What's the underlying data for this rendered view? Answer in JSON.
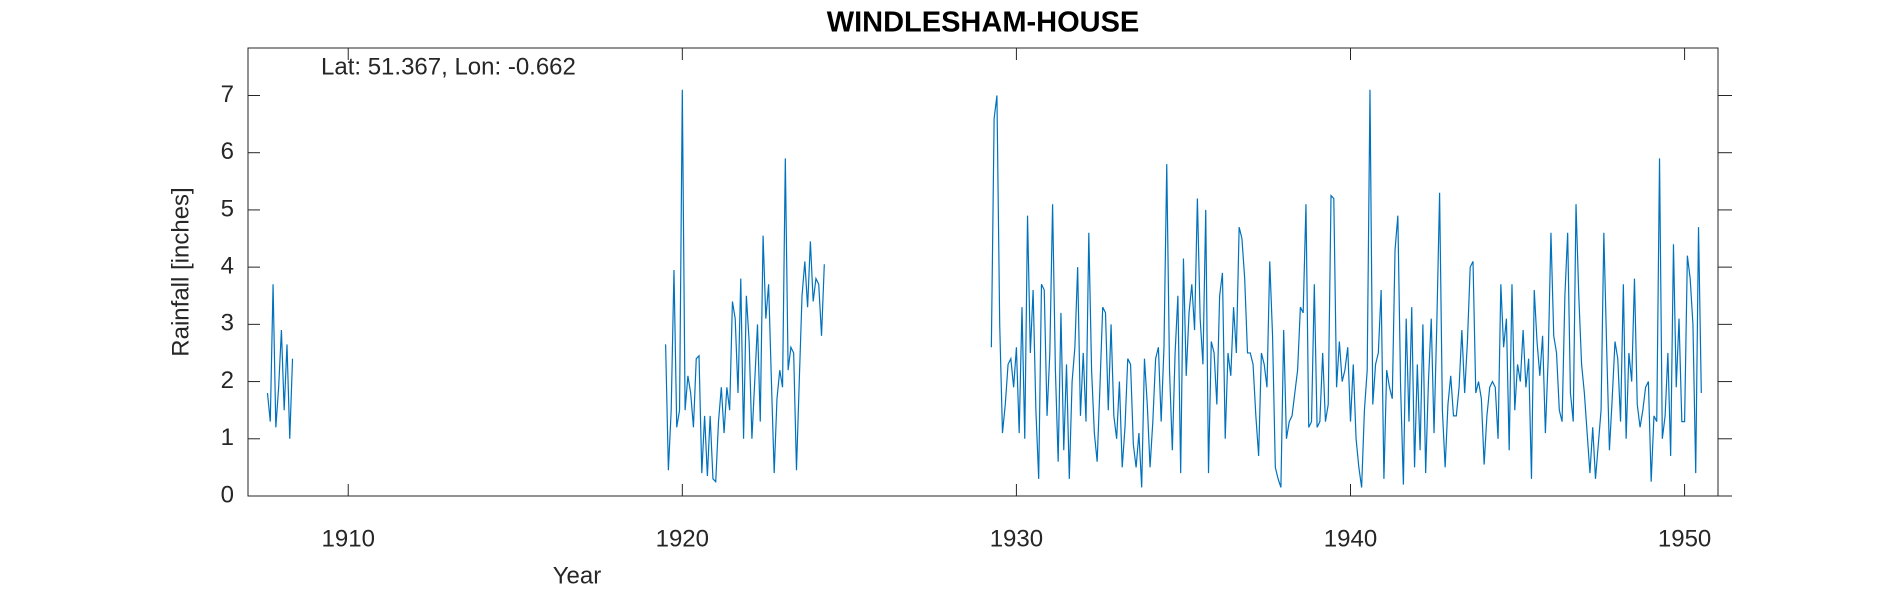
{
  "chart_data": {
    "type": "line",
    "title": "WINDLESHAM-HOUSE",
    "annotation": "Lat: 51.367, Lon: -0.662",
    "x_label": "Year",
    "y_label": "Rainfall [inches]",
    "xlim": [
      1907,
      1951
    ],
    "ylim": [
      0,
      7.83
    ],
    "xticks": [
      1910,
      1920,
      1930,
      1940,
      1950
    ],
    "yticks": [
      0,
      1,
      2,
      3,
      4,
      5,
      6,
      7
    ],
    "grid": false,
    "x": [
      1907.583,
      1907.667,
      1907.75,
      1907.833,
      1907.917,
      1908,
      1908.083,
      1908.167,
      1908.25,
      1908.333,
      1908.417,
      1919.5,
      1919.583,
      1919.667,
      1919.75,
      1919.833,
      1919.917,
      1920,
      1920.083,
      1920.167,
      1920.25,
      1920.333,
      1920.417,
      1920.5,
      1920.583,
      1920.667,
      1920.75,
      1920.833,
      1920.917,
      1921,
      1921.083,
      1921.167,
      1921.25,
      1921.333,
      1921.417,
      1921.5,
      1921.583,
      1921.667,
      1921.75,
      1921.833,
      1921.917,
      1922,
      1922.083,
      1922.167,
      1922.25,
      1922.333,
      1922.417,
      1922.5,
      1922.583,
      1922.667,
      1922.75,
      1922.833,
      1922.917,
      1923,
      1923.083,
      1923.167,
      1923.25,
      1923.333,
      1923.417,
      1923.5,
      1923.583,
      1923.667,
      1923.75,
      1923.833,
      1923.917,
      1924,
      1924.083,
      1924.167,
      1924.25,
      1924.333,
      1929.25,
      1929.333,
      1929.417,
      1929.5,
      1929.583,
      1929.667,
      1929.75,
      1929.833,
      1929.917,
      1930,
      1930.083,
      1930.167,
      1930.25,
      1930.333,
      1930.417,
      1930.5,
      1930.583,
      1930.667,
      1930.75,
      1930.833,
      1930.917,
      1931,
      1931.083,
      1931.167,
      1931.25,
      1931.333,
      1931.417,
      1931.5,
      1931.583,
      1931.667,
      1931.75,
      1931.833,
      1931.917,
      1932,
      1932.083,
      1932.167,
      1932.25,
      1932.333,
      1932.417,
      1932.5,
      1932.583,
      1932.667,
      1932.75,
      1932.833,
      1932.917,
      1933,
      1933.083,
      1933.167,
      1933.25,
      1933.333,
      1933.417,
      1933.5,
      1933.583,
      1933.667,
      1933.75,
      1933.833,
      1933.917,
      1934,
      1934.083,
      1934.167,
      1934.25,
      1934.333,
      1934.417,
      1934.5,
      1934.583,
      1934.667,
      1934.75,
      1934.833,
      1934.917,
      1935,
      1935.083,
      1935.167,
      1935.25,
      1935.333,
      1935.417,
      1935.5,
      1935.583,
      1935.667,
      1935.75,
      1935.833,
      1935.917,
      1936,
      1936.083,
      1936.167,
      1936.25,
      1936.333,
      1936.417,
      1936.5,
      1936.583,
      1936.667,
      1936.75,
      1936.833,
      1936.917,
      1937,
      1937.083,
      1937.167,
      1937.25,
      1937.333,
      1937.417,
      1937.5,
      1937.583,
      1937.667,
      1937.75,
      1937.833,
      1937.917,
      1938,
      1938.083,
      1938.167,
      1938.25,
      1938.333,
      1938.417,
      1938.5,
      1938.583,
      1938.667,
      1938.75,
      1938.833,
      1938.917,
      1939,
      1939.083,
      1939.167,
      1939.25,
      1939.333,
      1939.417,
      1939.5,
      1939.583,
      1939.667,
      1939.75,
      1939.833,
      1939.917,
      1940,
      1940.083,
      1940.167,
      1940.25,
      1940.333,
      1940.417,
      1940.5,
      1940.583,
      1940.667,
      1940.75,
      1940.833,
      1940.917,
      1941,
      1941.083,
      1941.167,
      1941.25,
      1941.333,
      1941.417,
      1941.5,
      1941.583,
      1941.667,
      1941.75,
      1941.833,
      1941.917,
      1942,
      1942.083,
      1942.167,
      1942.25,
      1942.333,
      1942.417,
      1942.5,
      1942.583,
      1942.667,
      1942.75,
      1942.833,
      1942.917,
      1943,
      1943.083,
      1943.167,
      1943.25,
      1943.333,
      1943.417,
      1943.5,
      1943.583,
      1943.667,
      1943.75,
      1943.833,
      1943.917,
      1944,
      1944.083,
      1944.167,
      1944.25,
      1944.333,
      1944.417,
      1944.5,
      1944.583,
      1944.667,
      1944.75,
      1944.833,
      1944.917,
      1945,
      1945.083,
      1945.167,
      1945.25,
      1945.333,
      1945.417,
      1945.5,
      1945.583,
      1945.667,
      1945.75,
      1945.833,
      1945.917,
      1946,
      1946.083,
      1946.167,
      1946.25,
      1946.333,
      1946.417,
      1946.5,
      1946.583,
      1946.667,
      1946.75,
      1946.833,
      1946.917,
      1947,
      1947.083,
      1947.167,
      1947.25,
      1947.333,
      1947.417,
      1947.5,
      1947.583,
      1947.667,
      1947.75,
      1947.833,
      1947.917,
      1948,
      1948.083,
      1948.167,
      1948.25,
      1948.333,
      1948.417,
      1948.5,
      1948.583,
      1948.667,
      1948.75,
      1948.833,
      1948.917,
      1949,
      1949.083,
      1949.167,
      1949.25,
      1949.333,
      1949.417,
      1949.5,
      1949.583,
      1949.667,
      1949.75,
      1949.833,
      1949.917,
      1950,
      1950.083,
      1950.167,
      1950.25,
      1950.333,
      1950.417,
      1950.5
    ],
    "series": [
      {
        "color": "#0072bd",
        "values": [
          1.8,
          1.3,
          3.7,
          1.2,
          1.9,
          2.9,
          1.5,
          2.65,
          1.0,
          2.4,
          null,
          2.65,
          0.45,
          1.5,
          3.95,
          1.2,
          1.5,
          7.1,
          1.5,
          2.1,
          1.8,
          1.2,
          2.4,
          2.45,
          0.4,
          1.4,
          0.35,
          1.4,
          0.3,
          0.25,
          1.3,
          1.9,
          1.1,
          1.9,
          1.5,
          3.4,
          3.1,
          1.8,
          3.8,
          1.0,
          3.5,
          2.7,
          1.0,
          2.0,
          3.0,
          1.3,
          4.55,
          3.1,
          3.7,
          2.0,
          0.4,
          1.7,
          2.2,
          1.9,
          5.9,
          2.2,
          2.6,
          2.5,
          0.45,
          2.0,
          3.5,
          4.1,
          3.3,
          4.45,
          3.4,
          3.8,
          3.7,
          2.8,
          4.05,
          null,
          2.6,
          6.6,
          7.0,
          3.0,
          1.1,
          1.6,
          2.3,
          2.4,
          1.9,
          2.6,
          1.1,
          3.3,
          1.0,
          4.9,
          2.5,
          3.6,
          1.5,
          0.3,
          3.7,
          3.6,
          1.4,
          2.5,
          5.1,
          2.2,
          0.6,
          3.2,
          0.8,
          2.3,
          0.3,
          2.0,
          2.6,
          4.0,
          1.4,
          2.5,
          1.3,
          4.6,
          2.2,
          1.1,
          0.6,
          1.9,
          3.3,
          3.2,
          1.5,
          3.0,
          1.4,
          1.0,
          2.0,
          0.5,
          1.2,
          2.4,
          2.3,
          0.9,
          0.5,
          1.1,
          0.15,
          2.4,
          1.6,
          0.5,
          1.3,
          2.4,
          2.6,
          1.3,
          2.6,
          5.8,
          2.2,
          0.8,
          2.5,
          3.5,
          0.4,
          4.15,
          2.1,
          3.2,
          3.7,
          2.9,
          5.2,
          3.1,
          2.3,
          5.0,
          0.4,
          2.7,
          2.5,
          1.6,
          3.5,
          3.9,
          1.0,
          2.5,
          2.1,
          3.3,
          2.5,
          4.7,
          4.5,
          3.8,
          2.5,
          2.5,
          2.3,
          1.4,
          0.7,
          2.5,
          2.3,
          1.9,
          4.1,
          2.8,
          0.5,
          0.3,
          0.15,
          2.9,
          1.0,
          1.3,
          1.4,
          1.8,
          2.2,
          3.3,
          3.2,
          5.1,
          1.2,
          1.3,
          3.7,
          1.2,
          1.3,
          2.5,
          1.3,
          1.6,
          5.25,
          5.2,
          1.9,
          2.7,
          2.0,
          2.2,
          2.6,
          1.3,
          2.3,
          1.0,
          0.5,
          0.15,
          1.5,
          2.2,
          7.1,
          1.6,
          2.3,
          2.5,
          3.6,
          0.3,
          2.2,
          1.9,
          1.7,
          4.3,
          4.9,
          1.9,
          0.2,
          3.1,
          1.3,
          3.3,
          0.5,
          2.3,
          0.8,
          3.0,
          0.4,
          2.0,
          3.1,
          1.1,
          3.0,
          5.3,
          1.5,
          0.5,
          1.6,
          2.1,
          1.4,
          1.4,
          1.9,
          2.9,
          1.8,
          2.7,
          4.0,
          4.1,
          1.8,
          2.0,
          1.7,
          0.55,
          1.4,
          1.9,
          2.0,
          1.9,
          1.0,
          3.7,
          2.6,
          3.1,
          0.8,
          3.7,
          1.5,
          2.3,
          2.0,
          2.9,
          1.9,
          2.4,
          0.3,
          3.6,
          2.7,
          2.1,
          2.8,
          1.1,
          2.4,
          4.6,
          2.8,
          2.5,
          1.5,
          1.3,
          3.5,
          4.6,
          1.8,
          1.3,
          5.1,
          3.5,
          2.3,
          1.8,
          1.1,
          0.4,
          1.2,
          0.3,
          0.9,
          1.5,
          4.6,
          2.6,
          0.8,
          1.7,
          2.7,
          2.4,
          1.3,
          3.7,
          1.0,
          2.5,
          2.0,
          3.8,
          1.6,
          1.2,
          1.5,
          1.9,
          2.0,
          0.25,
          1.4,
          1.3,
          5.9,
          1.0,
          1.4,
          2.5,
          0.7,
          4.4,
          1.9,
          3.1,
          1.3,
          1.3,
          4.2,
          3.8,
          3.0,
          0.4,
          4.7,
          1.8
        ]
      }
    ]
  }
}
